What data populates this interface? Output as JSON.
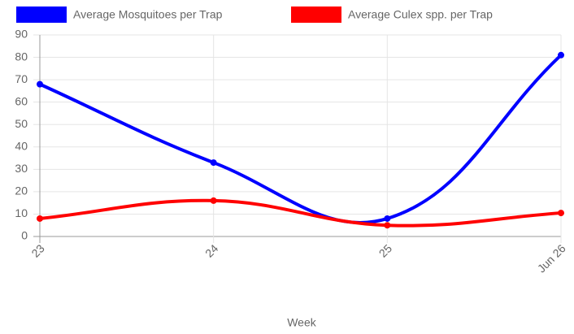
{
  "chart_data": {
    "type": "line",
    "categories": [
      "23",
      "24",
      "25",
      "Jun 26"
    ],
    "series": [
      {
        "name": "Average Mosquitoes per Trap",
        "color": "#0000ff",
        "values": [
          68,
          33,
          8,
          81
        ]
      },
      {
        "name": "Average Culex spp. per Trap",
        "color": "#ff0000",
        "values": [
          8,
          16,
          5,
          10.5
        ]
      }
    ],
    "xlabel": "Week",
    "ylim": [
      0,
      90
    ],
    "yticks": [
      0,
      10,
      20,
      30,
      40,
      50,
      60,
      70,
      80,
      90
    ],
    "grid": true,
    "legend": "top"
  }
}
